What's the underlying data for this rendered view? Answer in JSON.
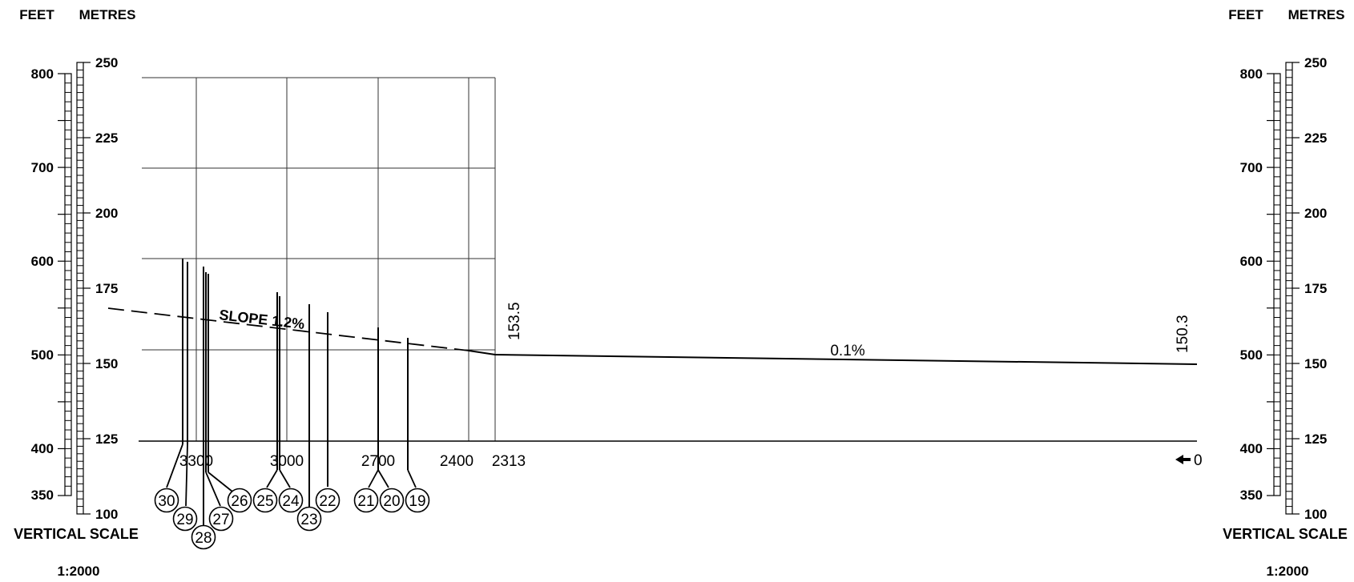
{
  "left_scale": {
    "feet_header": "FEET",
    "metres_header": "METRES",
    "feet_labels": [
      "800",
      "700",
      "600",
      "500",
      "400",
      "350"
    ],
    "metres_labels": [
      "250",
      "225",
      "200",
      "175",
      "150",
      "125",
      "100"
    ],
    "caption": "VERTICAL SCALE",
    "ratio": "1:2000"
  },
  "right_scale": {
    "feet_header": "FEET",
    "metres_header": "METRES",
    "feet_labels": [
      "800",
      "700",
      "600",
      "500",
      "400",
      "350"
    ],
    "metres_labels": [
      "250",
      "225",
      "200",
      "175",
      "150",
      "125",
      "100"
    ],
    "caption": "VERTICAL SCALE",
    "ratio": "1:2000"
  },
  "profile": {
    "slope_label": "SLOPE 1.2%",
    "gradient_label": "0.1%",
    "elevation_start": "153.5",
    "elevation_end": "150.3",
    "chainages": [
      "3300",
      "3000",
      "2700",
      "2400",
      "2313"
    ],
    "origin_label": "0"
  },
  "markers": [
    "30",
    "29",
    "28",
    "27",
    "26",
    "25",
    "24",
    "23",
    "22",
    "21",
    "20",
    "19"
  ],
  "colors": {
    "ink": "#000000",
    "grid": "#333333",
    "background": "#ffffff"
  }
}
